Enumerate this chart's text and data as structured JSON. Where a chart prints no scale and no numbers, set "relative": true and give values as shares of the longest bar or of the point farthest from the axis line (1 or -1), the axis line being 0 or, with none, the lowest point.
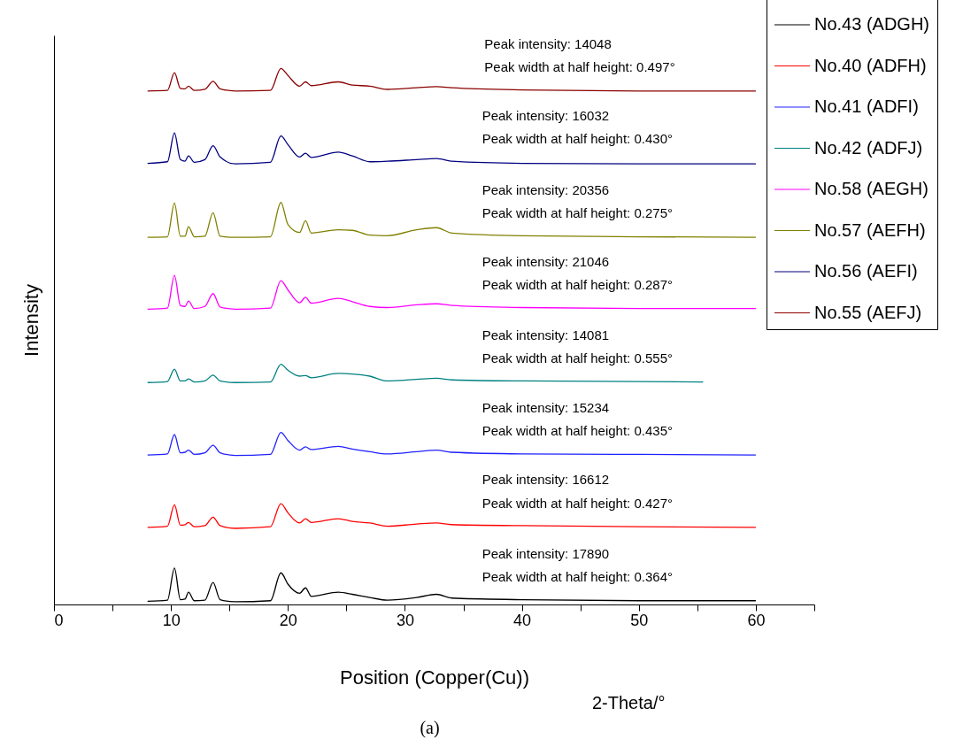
{
  "chart_data": {
    "type": "line",
    "relative": true,
    "xlabel": "Position (Copper(Cu))",
    "ylabel": "Intensity",
    "xlim": [
      0,
      65
    ],
    "xticks": [
      0,
      {
        "value": 5,
        "label": null
      },
      10,
      {
        "value": 15,
        "label": null
      },
      20,
      {
        "value": 25,
        "label": null
      },
      30,
      {
        "value": 35,
        "label": null
      },
      40,
      {
        "value": 45,
        "label": null
      },
      50,
      {
        "value": 55,
        "label": null
      },
      60,
      {
        "value": 65,
        "label": null
      }
    ],
    "legend": "top right",
    "x": [
      8,
      9.7,
      10.3,
      10.8,
      11.2,
      11.5,
      12.0,
      12.9,
      13.6,
      14.2,
      15.5,
      18.5,
      19.4,
      20.0,
      21.0,
      21.5,
      22.0,
      24.3,
      25.5,
      27.0,
      28.5,
      31.0,
      32.7,
      34.0,
      40,
      50,
      60
    ],
    "series": [
      {
        "name": "No.43 (ADGH)",
        "color": "#000000",
        "values": [
          0.006,
          0.008,
          0.068,
          0.009,
          0.01,
          0.023,
          0.007,
          0.008,
          0.041,
          0.009,
          0.005,
          0.007,
          0.059,
          0.038,
          0.021,
          0.031,
          0.015,
          0.023,
          0.019,
          0.013,
          0.008,
          0.013,
          0.019,
          0.012,
          0.009,
          0.007,
          0.007
        ]
      },
      {
        "name": "No.40 (ADFH)",
        "color": "#ff0000",
        "values": [
          0.144,
          0.146,
          0.186,
          0.148,
          0.149,
          0.153,
          0.145,
          0.147,
          0.163,
          0.147,
          0.142,
          0.145,
          0.188,
          0.171,
          0.152,
          0.16,
          0.153,
          0.16,
          0.155,
          0.152,
          0.146,
          0.15,
          0.152,
          0.149,
          0.147,
          0.145,
          0.144
        ]
      },
      {
        "name": "No.41 (ADFI)",
        "color": "#2020ff",
        "values": [
          0.279,
          0.281,
          0.317,
          0.283,
          0.284,
          0.288,
          0.28,
          0.283,
          0.297,
          0.283,
          0.278,
          0.28,
          0.321,
          0.306,
          0.288,
          0.294,
          0.289,
          0.295,
          0.29,
          0.285,
          0.281,
          0.285,
          0.288,
          0.284,
          0.281,
          0.28,
          0.279
        ]
      },
      {
        "name": "No.42 (ADFJ)",
        "color": "#008080",
        "x": [
          8,
          9.7,
          10.3,
          10.8,
          11.2,
          11.5,
          12.0,
          12.9,
          13.6,
          14.2,
          15.5,
          18.5,
          19.4,
          20.0,
          21.0,
          21.5,
          22.0,
          24.3,
          25.5,
          27.0,
          28.5,
          31.0,
          32.7,
          34.0,
          40,
          50,
          55.5
        ],
        "values": [
          0.414,
          0.416,
          0.439,
          0.417,
          0.417,
          0.421,
          0.415,
          0.417,
          0.428,
          0.417,
          0.414,
          0.415,
          0.448,
          0.437,
          0.426,
          0.427,
          0.423,
          0.431,
          0.43,
          0.426,
          0.417,
          0.42,
          0.422,
          0.419,
          0.417,
          0.416,
          0.415
        ]
      },
      {
        "name": "No.58 (AEGH)",
        "color": "#ff00ff",
        "values": [
          0.551,
          0.553,
          0.614,
          0.558,
          0.556,
          0.566,
          0.552,
          0.556,
          0.58,
          0.555,
          0.551,
          0.553,
          0.604,
          0.587,
          0.563,
          0.573,
          0.562,
          0.571,
          0.565,
          0.556,
          0.554,
          0.559,
          0.561,
          0.558,
          0.554,
          0.552,
          0.552
        ]
      },
      {
        "name": "No.57 (AEFH)",
        "color": "#808000",
        "values": [
          0.685,
          0.686,
          0.749,
          0.687,
          0.687,
          0.705,
          0.686,
          0.687,
          0.731,
          0.687,
          0.685,
          0.686,
          0.75,
          0.709,
          0.694,
          0.716,
          0.693,
          0.699,
          0.698,
          0.689,
          0.688,
          0.699,
          0.703,
          0.693,
          0.688,
          0.686,
          0.685
        ]
      },
      {
        "name": "No.56 (AEFI)",
        "color": "#000080",
        "values": [
          0.823,
          0.826,
          0.88,
          0.83,
          0.827,
          0.837,
          0.825,
          0.83,
          0.856,
          0.835,
          0.822,
          0.825,
          0.874,
          0.858,
          0.835,
          0.842,
          0.834,
          0.844,
          0.837,
          0.826,
          0.827,
          0.83,
          0.832,
          0.827,
          0.823,
          0.822,
          0.822
        ]
      },
      {
        "name": "No.55 (AEFJ)",
        "color": "#8b0000",
        "values": [
          0.958,
          0.959,
          0.992,
          0.963,
          0.962,
          0.967,
          0.959,
          0.961,
          0.976,
          0.962,
          0.958,
          0.959,
          1.0,
          0.987,
          0.967,
          0.975,
          0.968,
          0.975,
          0.969,
          0.967,
          0.961,
          0.964,
          0.966,
          0.964,
          0.96,
          0.958,
          0.958
        ]
      }
    ],
    "annotations": [
      "Peak intensity: 14048",
      "Peak width at half height: 0.497°",
      "Peak intensity: 16032",
      "Peak width at half height: 0.430°",
      "Peak intensity: 20356",
      "Peak width at half height: 0.275°",
      "Peak intensity: 21046",
      "Peak width at half height: 0.287°",
      "Peak intensity: 14081",
      "Peak width at half height: 0.555°",
      "Peak intensity: 15234",
      "Peak width at half height: 0.435°",
      "Peak intensity: 16612",
      "Peak width at half height: 0.427°",
      "Peak intensity: 17890",
      "Peak width at half height: 0.364°",
      "2-Theta/°",
      "(a)"
    ]
  }
}
